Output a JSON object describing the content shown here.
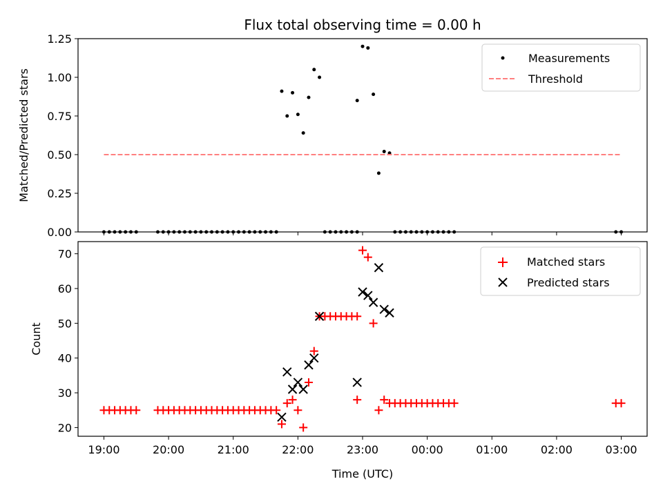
{
  "title": "Flux total observing time = 0.00 h",
  "xlabel": "Time (UTC)",
  "x_ticks": [
    "19:00",
    "20:00",
    "21:00",
    "22:00",
    "23:00",
    "00:00",
    "01:00",
    "02:00",
    "03:00"
  ],
  "colors": {
    "matched": "#ff0000",
    "predicted": "#000000",
    "threshold": "#ff7f7f",
    "measurement": "#000000"
  },
  "chart_data": [
    {
      "type": "scatter",
      "ylabel": "Matched/Predicted stars",
      "ylim": [
        0,
        1.25
      ],
      "xlim": [
        "18:36",
        "03:24"
      ],
      "y_ticks": [
        "0.00",
        "0.25",
        "0.50",
        "0.75",
        "1.00",
        "1.25"
      ],
      "legend": {
        "placement": "top-right",
        "entries": [
          "Measurements",
          "Threshold"
        ]
      },
      "series": [
        {
          "name": "Measurements",
          "marker": "dot",
          "points": [
            [
              "19:00",
              0
            ],
            [
              "19:05",
              0
            ],
            [
              "19:10",
              0
            ],
            [
              "19:15",
              0
            ],
            [
              "19:20",
              0
            ],
            [
              "19:25",
              0
            ],
            [
              "19:30",
              0
            ],
            [
              "19:50",
              0
            ],
            [
              "19:55",
              0
            ],
            [
              "20:00",
              0
            ],
            [
              "20:05",
              0
            ],
            [
              "20:10",
              0
            ],
            [
              "20:15",
              0
            ],
            [
              "20:20",
              0
            ],
            [
              "20:25",
              0
            ],
            [
              "20:30",
              0
            ],
            [
              "20:35",
              0
            ],
            [
              "20:40",
              0
            ],
            [
              "20:45",
              0
            ],
            [
              "20:50",
              0
            ],
            [
              "20:55",
              0
            ],
            [
              "21:00",
              0
            ],
            [
              "21:05",
              0
            ],
            [
              "21:10",
              0
            ],
            [
              "21:15",
              0
            ],
            [
              "21:20",
              0
            ],
            [
              "21:25",
              0
            ],
            [
              "21:30",
              0
            ],
            [
              "21:35",
              0
            ],
            [
              "21:40",
              0
            ],
            [
              "21:45",
              0.91
            ],
            [
              "21:50",
              0.75
            ],
            [
              "21:55",
              0.9
            ],
            [
              "22:00",
              0.76
            ],
            [
              "22:05",
              0.64
            ],
            [
              "22:10",
              0.87
            ],
            [
              "22:15",
              1.05
            ],
            [
              "22:20",
              1.0
            ],
            [
              "22:25",
              0
            ],
            [
              "22:30",
              0
            ],
            [
              "22:35",
              0
            ],
            [
              "22:40",
              0
            ],
            [
              "22:45",
              0
            ],
            [
              "22:50",
              0
            ],
            [
              "22:55",
              0
            ],
            [
              "22:55",
              0.85
            ],
            [
              "23:00",
              1.2
            ],
            [
              "23:05",
              1.19
            ],
            [
              "23:10",
              0.89
            ],
            [
              "23:15",
              0.38
            ],
            [
              "23:20",
              0.52
            ],
            [
              "23:25",
              0.51
            ],
            [
              "23:30",
              0
            ],
            [
              "23:35",
              0
            ],
            [
              "23:40",
              0
            ],
            [
              "23:45",
              0
            ],
            [
              "23:50",
              0
            ],
            [
              "23:55",
              0
            ],
            [
              "00:00",
              0
            ],
            [
              "00:05",
              0
            ],
            [
              "00:10",
              0
            ],
            [
              "00:15",
              0
            ],
            [
              "00:20",
              0
            ],
            [
              "00:25",
              0
            ],
            [
              "02:55",
              0
            ],
            [
              "03:00",
              0
            ]
          ]
        },
        {
          "name": "Threshold",
          "style": "dashed",
          "points": [
            [
              "19:00",
              0.5
            ],
            [
              "03:00",
              0.5
            ]
          ]
        }
      ]
    },
    {
      "type": "scatter",
      "ylabel": "Count",
      "ylim": [
        17.5,
        73.5
      ],
      "xlim": [
        "18:36",
        "03:24"
      ],
      "y_ticks": [
        "20",
        "30",
        "40",
        "50",
        "60",
        "70"
      ],
      "legend": {
        "placement": "top-right",
        "entries": [
          "Matched stars",
          "Predicted stars"
        ]
      },
      "series": [
        {
          "name": "Matched stars",
          "marker": "plus",
          "points": [
            [
              "19:00",
              25
            ],
            [
              "19:05",
              25
            ],
            [
              "19:10",
              25
            ],
            [
              "19:15",
              25
            ],
            [
              "19:20",
              25
            ],
            [
              "19:25",
              25
            ],
            [
              "19:30",
              25
            ],
            [
              "19:50",
              25
            ],
            [
              "19:55",
              25
            ],
            [
              "20:00",
              25
            ],
            [
              "20:05",
              25
            ],
            [
              "20:10",
              25
            ],
            [
              "20:15",
              25
            ],
            [
              "20:20",
              25
            ],
            [
              "20:25",
              25
            ],
            [
              "20:30",
              25
            ],
            [
              "20:35",
              25
            ],
            [
              "20:40",
              25
            ],
            [
              "20:45",
              25
            ],
            [
              "20:50",
              25
            ],
            [
              "20:55",
              25
            ],
            [
              "21:00",
              25
            ],
            [
              "21:05",
              25
            ],
            [
              "21:10",
              25
            ],
            [
              "21:15",
              25
            ],
            [
              "21:20",
              25
            ],
            [
              "21:25",
              25
            ],
            [
              "21:30",
              25
            ],
            [
              "21:35",
              25
            ],
            [
              "21:40",
              25
            ],
            [
              "21:45",
              21
            ],
            [
              "21:50",
              27
            ],
            [
              "21:55",
              28
            ],
            [
              "22:00",
              25
            ],
            [
              "22:05",
              20
            ],
            [
              "22:10",
              33
            ],
            [
              "22:15",
              42
            ],
            [
              "22:20",
              52
            ],
            [
              "22:25",
              52
            ],
            [
              "22:30",
              52
            ],
            [
              "22:35",
              52
            ],
            [
              "22:40",
              52
            ],
            [
              "22:45",
              52
            ],
            [
              "22:50",
              52
            ],
            [
              "22:55",
              52
            ],
            [
              "22:55",
              28
            ],
            [
              "23:00",
              71
            ],
            [
              "23:05",
              69
            ],
            [
              "23:10",
              50
            ],
            [
              "23:15",
              25
            ],
            [
              "23:20",
              28
            ],
            [
              "23:25",
              27
            ],
            [
              "23:30",
              27
            ],
            [
              "23:35",
              27
            ],
            [
              "23:40",
              27
            ],
            [
              "23:45",
              27
            ],
            [
              "23:50",
              27
            ],
            [
              "23:55",
              27
            ],
            [
              "00:00",
              27
            ],
            [
              "00:05",
              27
            ],
            [
              "00:10",
              27
            ],
            [
              "00:15",
              27
            ],
            [
              "00:20",
              27
            ],
            [
              "00:25",
              27
            ],
            [
              "02:55",
              27
            ],
            [
              "03:00",
              27
            ]
          ]
        },
        {
          "name": "Predicted stars",
          "marker": "x",
          "points": [
            [
              "21:45",
              23
            ],
            [
              "21:50",
              36
            ],
            [
              "21:55",
              31
            ],
            [
              "22:00",
              33
            ],
            [
              "22:05",
              31
            ],
            [
              "22:10",
              38
            ],
            [
              "22:15",
              40
            ],
            [
              "22:20",
              52
            ],
            [
              "22:55",
              33
            ],
            [
              "23:00",
              59
            ],
            [
              "23:05",
              58
            ],
            [
              "23:10",
              56
            ],
            [
              "23:15",
              66
            ],
            [
              "23:20",
              54
            ],
            [
              "23:25",
              53
            ]
          ]
        }
      ]
    }
  ]
}
